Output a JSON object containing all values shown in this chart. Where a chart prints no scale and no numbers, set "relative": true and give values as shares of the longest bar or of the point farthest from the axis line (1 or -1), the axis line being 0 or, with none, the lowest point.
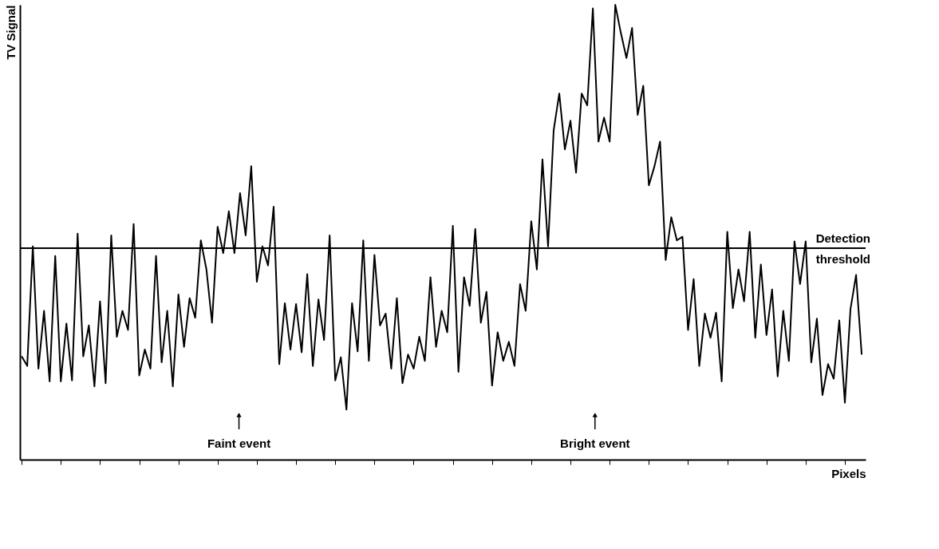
{
  "chart_data": {
    "type": "line",
    "relative": true,
    "xlabel": "Pixels",
    "ylabel": "TV Signal",
    "categories": [
      null,
      null,
      null,
      null,
      null,
      null,
      null,
      null,
      null,
      null,
      null,
      null,
      null,
      null,
      null,
      null,
      null,
      null,
      null,
      null,
      null,
      null,
      null,
      null,
      null,
      null,
      null,
      null,
      null,
      null,
      null,
      null,
      null,
      null,
      null,
      null,
      null,
      null,
      null,
      null,
      null,
      null,
      null,
      null,
      null,
      null,
      null,
      null,
      null,
      null,
      null,
      null,
      null,
      null,
      null,
      null,
      null,
      null,
      null,
      null,
      null,
      null,
      null,
      null,
      null,
      null,
      null,
      null,
      null,
      null,
      null,
      null,
      null,
      null,
      null,
      null,
      null,
      null,
      null,
      null,
      null,
      null,
      null,
      null,
      null,
      null,
      null,
      null,
      null,
      null,
      null,
      null,
      null,
      null,
      null,
      null,
      null,
      null,
      null,
      null,
      null,
      null,
      null,
      null,
      null,
      null,
      null,
      null,
      null,
      null,
      null,
      null,
      null,
      null,
      null,
      null,
      null,
      null,
      null,
      null,
      null,
      null,
      null,
      null,
      null,
      null,
      null,
      null,
      null,
      null,
      null,
      null,
      null,
      null,
      null,
      null,
      null,
      null,
      null,
      null,
      null,
      null,
      null,
      null,
      null,
      null,
      null,
      null,
      null,
      null,
      null
    ],
    "series": [
      {
        "color": "#000000",
        "values": [
          0.227,
          0.206,
          0.469,
          0.2,
          0.327,
          0.172,
          0.448,
          0.172,
          0.299,
          0.174,
          0.497,
          0.227,
          0.295,
          0.161,
          0.348,
          0.168,
          0.493,
          0.27,
          0.327,
          0.285,
          0.518,
          0.185,
          0.242,
          0.2,
          0.448,
          0.214,
          0.327,
          0.161,
          0.363,
          0.248,
          0.355,
          0.312,
          0.482,
          0.418,
          0.301,
          0.512,
          0.454,
          0.546,
          0.454,
          0.586,
          0.493,
          0.645,
          0.391,
          0.469,
          0.427,
          0.556,
          0.21,
          0.344,
          0.242,
          0.342,
          0.236,
          0.408,
          0.206,
          0.352,
          0.263,
          0.493,
          0.174,
          0.225,
          0.11,
          0.344,
          0.238,
          0.482,
          0.217,
          0.45,
          0.295,
          0.321,
          0.2,
          0.355,
          0.168,
          0.231,
          0.2,
          0.27,
          0.217,
          0.401,
          0.248,
          0.327,
          0.28,
          0.514,
          0.193,
          0.401,
          0.338,
          0.507,
          0.301,
          0.369,
          0.163,
          0.28,
          0.217,
          0.259,
          0.206,
          0.386,
          0.327,
          0.524,
          0.418,
          0.66,
          0.469,
          0.724,
          0.805,
          0.682,
          0.745,
          0.631,
          0.805,
          0.779,
          0.992,
          0.699,
          0.752,
          0.699,
          1.0,
          0.938,
          0.883,
          0.949,
          0.758,
          0.822,
          0.603,
          0.645,
          0.699,
          0.439,
          0.533,
          0.482,
          0.49,
          0.285,
          0.397,
          0.206,
          0.321,
          0.268,
          0.323,
          0.172,
          0.501,
          0.333,
          0.418,
          0.348,
          0.501,
          0.268,
          0.429,
          0.274,
          0.374,
          0.183,
          0.327,
          0.217,
          0.48,
          0.386,
          0.48,
          0.214,
          0.31,
          0.142,
          0.21,
          0.178,
          0.306,
          0.125,
          0.331,
          0.406,
          0.231
        ]
      }
    ],
    "ref_lines": [
      {
        "axis": "y",
        "value": 0.465,
        "label": "Detection threshold",
        "color": "#000000"
      }
    ],
    "annotations": [
      "Faint event",
      "Bright event"
    ],
    "grid": false,
    "marker": "none",
    "line_style": "solid"
  }
}
